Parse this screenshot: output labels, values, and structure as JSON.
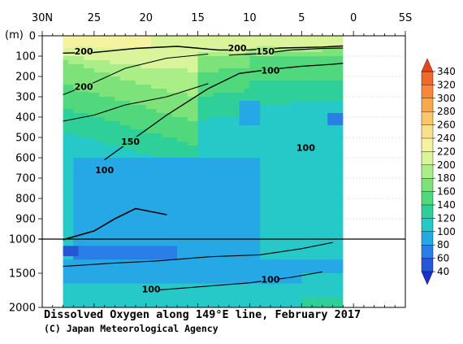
{
  "chart_data": {
    "type": "heatmap",
    "title": "Dissolved Oxygen along 149°E line, February 2017",
    "credit": "(C) Japan Meteorological Agency",
    "y_unit": "(m)",
    "x_ticks": [
      "30N",
      "25",
      "20",
      "15",
      "10",
      "5",
      "0",
      "5S"
    ],
    "x_tick_values": [
      30,
      25,
      20,
      15,
      10,
      5,
      0,
      -5
    ],
    "xlim": [
      30,
      -5
    ],
    "data_xlim": [
      28,
      1
    ],
    "y_ticks_upper": [
      "0",
      "100",
      "200",
      "300",
      "400",
      "500",
      "600",
      "700",
      "800",
      "900",
      "1000"
    ],
    "y_ticks_lower": [
      "1500",
      "2000"
    ],
    "ylim": [
      0,
      2000
    ],
    "y_break": 1000,
    "colorbar": {
      "labels": [
        "340",
        "320",
        "300",
        "280",
        "260",
        "240",
        "220",
        "200",
        "180",
        "160",
        "140",
        "120",
        "100",
        "80",
        "60",
        "40"
      ],
      "colors": [
        "#e8451e",
        "#f06a28",
        "#f5883a",
        "#f8a84e",
        "#fbc668",
        "#fbe08c",
        "#f5f3a0",
        "#d9f49a",
        "#aaee88",
        "#7ee27a",
        "#52d87c",
        "#2ecf98",
        "#26c8c8",
        "#27a8e6",
        "#2a7ee8",
        "#2456d6",
        "#1c2fcf"
      ],
      "over_color": "#e8451e",
      "under_color": "#1c2fcf"
    },
    "contour_labels": [
      {
        "text": "200",
        "lat": 26,
        "depth": 75
      },
      {
        "text": "200",
        "lat": 11.2,
        "depth": 60
      },
      {
        "text": "150",
        "lat": 8.5,
        "depth": 75
      },
      {
        "text": "100",
        "lat": 8,
        "depth": 170
      },
      {
        "text": "200",
        "lat": 26,
        "depth": 250
      },
      {
        "text": "150",
        "lat": 21.5,
        "depth": 520
      },
      {
        "text": "100",
        "lat": 24,
        "depth": 660
      },
      {
        "text": "100",
        "lat": 4.6,
        "depth": 550
      },
      {
        "text": "100",
        "lat": 8,
        "depth": 1590
      },
      {
        "text": "100",
        "lat": 19.5,
        "depth": 1730
      }
    ]
  }
}
